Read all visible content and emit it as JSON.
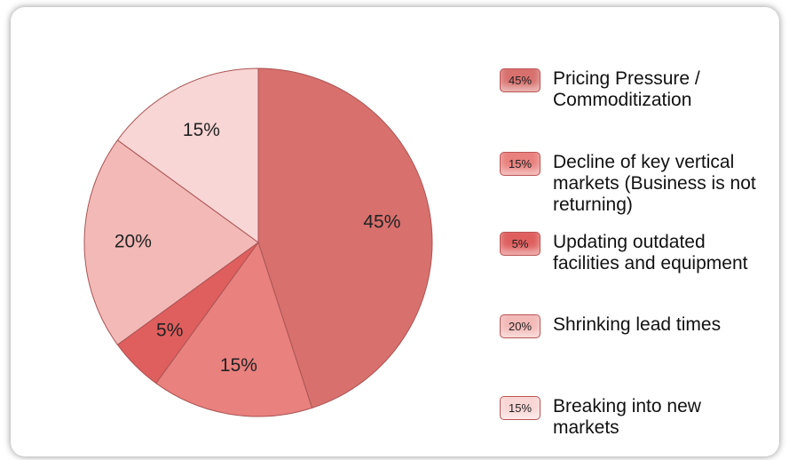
{
  "chart_data": {
    "type": "pie",
    "categories": [
      "Pricing Pressure / Commoditization",
      "Decline of key vertical markets (Business is not returning)",
      "Updating outdated facilities and equipment",
      "Shrinking lead times",
      "Breaking into new markets"
    ],
    "values": [
      45,
      15,
      5,
      20,
      15
    ],
    "value_labels": [
      "45%",
      "15%",
      "5%",
      "20%",
      "15%"
    ],
    "colors": [
      "#d8706d",
      "#e9817e",
      "#df5f5e",
      "#f2b9b7",
      "#f8d6d5"
    ],
    "legend": "right"
  }
}
